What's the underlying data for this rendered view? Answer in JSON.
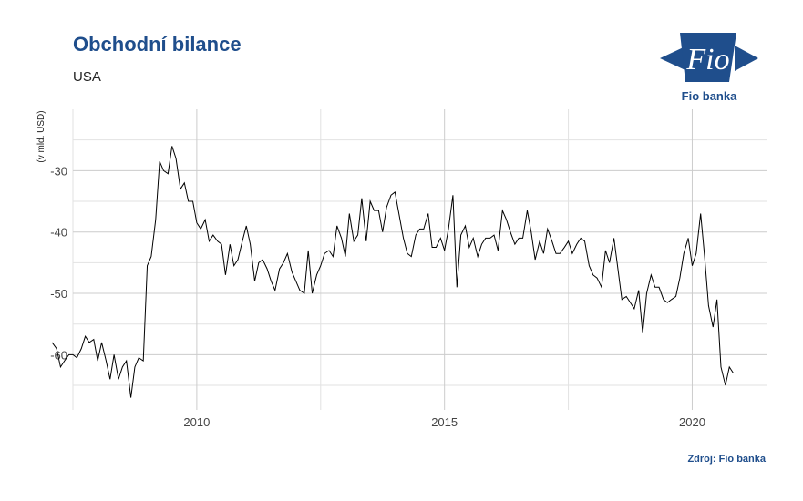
{
  "header": {
    "title": "Obchodní bilance",
    "subtitle": "USA"
  },
  "logo": {
    "icon": "fio-banka-logo",
    "mark_text": "Fio",
    "name": "Fio banka",
    "color": "#1f4e8c"
  },
  "source": "Zdroj: Fio banka",
  "chart_data": {
    "type": "line",
    "title": "Obchodní bilance",
    "subtitle": "USA",
    "xlabel": "",
    "ylabel": "(v mld. USD)",
    "x_ticks": [
      "2010",
      "2015",
      "2020"
    ],
    "y_ticks": [
      "-30",
      "-40",
      "-50",
      "-60"
    ],
    "xlim": [
      2007.5,
      2021.5
    ],
    "ylim": [
      -69,
      -20
    ],
    "grid": true,
    "line_color": "#000000",
    "series": [
      {
        "points": [
          [
            2007.08,
            -58.0
          ],
          [
            2007.17,
            -59.0
          ],
          [
            2007.25,
            -62.0
          ],
          [
            2007.33,
            -61.0
          ],
          [
            2007.42,
            -60.0
          ],
          [
            2007.5,
            -60.0
          ],
          [
            2007.58,
            -60.5
          ],
          [
            2007.67,
            -59.0
          ],
          [
            2007.75,
            -57.0
          ],
          [
            2007.83,
            -58.0
          ],
          [
            2007.92,
            -57.5
          ],
          [
            2008.0,
            -61.0
          ],
          [
            2008.08,
            -58.0
          ],
          [
            2008.17,
            -61.0
          ],
          [
            2008.25,
            -64.0
          ],
          [
            2008.33,
            -60.0
          ],
          [
            2008.42,
            -64.0
          ],
          [
            2008.5,
            -62.0
          ],
          [
            2008.58,
            -61.0
          ],
          [
            2008.67,
            -67.0
          ],
          [
            2008.75,
            -62.0
          ],
          [
            2008.83,
            -60.5
          ],
          [
            2008.92,
            -61.0
          ],
          [
            2009.0,
            -45.5
          ],
          [
            2009.08,
            -44.0
          ],
          [
            2009.17,
            -38.0
          ],
          [
            2009.25,
            -28.5
          ],
          [
            2009.33,
            -30.0
          ],
          [
            2009.42,
            -30.5
          ],
          [
            2009.5,
            -26.0
          ],
          [
            2009.58,
            -28.0
          ],
          [
            2009.67,
            -33.0
          ],
          [
            2009.75,
            -32.0
          ],
          [
            2009.83,
            -35.0
          ],
          [
            2009.92,
            -35.0
          ],
          [
            2010.0,
            -38.5
          ],
          [
            2010.08,
            -39.5
          ],
          [
            2010.17,
            -38.0
          ],
          [
            2010.25,
            -41.5
          ],
          [
            2010.33,
            -40.5
          ],
          [
            2010.42,
            -41.5
          ],
          [
            2010.5,
            -42.0
          ],
          [
            2010.58,
            -47.0
          ],
          [
            2010.67,
            -42.0
          ],
          [
            2010.75,
            -45.5
          ],
          [
            2010.83,
            -44.5
          ],
          [
            2010.92,
            -41.5
          ],
          [
            2011.0,
            -39.0
          ],
          [
            2011.08,
            -42.0
          ],
          [
            2011.17,
            -48.0
          ],
          [
            2011.25,
            -45.0
          ],
          [
            2011.33,
            -44.5
          ],
          [
            2011.42,
            -46.0
          ],
          [
            2011.5,
            -48.0
          ],
          [
            2011.58,
            -49.5
          ],
          [
            2011.67,
            -46.0
          ],
          [
            2011.75,
            -45.0
          ],
          [
            2011.83,
            -43.5
          ],
          [
            2011.92,
            -46.5
          ],
          [
            2012.0,
            -48.0
          ],
          [
            2012.08,
            -49.5
          ],
          [
            2012.17,
            -50.0
          ],
          [
            2012.25,
            -43.0
          ],
          [
            2012.33,
            -50.0
          ],
          [
            2012.42,
            -47.0
          ],
          [
            2012.5,
            -45.5
          ],
          [
            2012.58,
            -43.5
          ],
          [
            2012.67,
            -43.0
          ],
          [
            2012.75,
            -44.0
          ],
          [
            2012.83,
            -39.0
          ],
          [
            2012.92,
            -41.0
          ],
          [
            2013.0,
            -44.0
          ],
          [
            2013.08,
            -37.0
          ],
          [
            2013.17,
            -41.5
          ],
          [
            2013.25,
            -40.5
          ],
          [
            2013.33,
            -34.5
          ],
          [
            2013.42,
            -41.5
          ],
          [
            2013.5,
            -35.0
          ],
          [
            2013.58,
            -36.5
          ],
          [
            2013.67,
            -36.5
          ],
          [
            2013.75,
            -40.0
          ],
          [
            2013.83,
            -36.0
          ],
          [
            2013.92,
            -34.0
          ],
          [
            2014.0,
            -33.5
          ],
          [
            2014.08,
            -37.0
          ],
          [
            2014.17,
            -41.0
          ],
          [
            2014.25,
            -43.5
          ],
          [
            2014.33,
            -44.0
          ],
          [
            2014.42,
            -40.5
          ],
          [
            2014.5,
            -39.5
          ],
          [
            2014.58,
            -39.5
          ],
          [
            2014.67,
            -37.0
          ],
          [
            2014.75,
            -42.5
          ],
          [
            2014.83,
            -42.5
          ],
          [
            2014.92,
            -41.0
          ],
          [
            2015.0,
            -43.0
          ],
          [
            2015.08,
            -39.5
          ],
          [
            2015.17,
            -34.0
          ],
          [
            2015.25,
            -49.0
          ],
          [
            2015.33,
            -40.5
          ],
          [
            2015.42,
            -39.0
          ],
          [
            2015.5,
            -42.5
          ],
          [
            2015.58,
            -41.0
          ],
          [
            2015.67,
            -44.0
          ],
          [
            2015.75,
            -42.0
          ],
          [
            2015.83,
            -41.0
          ],
          [
            2015.92,
            -41.0
          ],
          [
            2016.0,
            -40.5
          ],
          [
            2016.08,
            -43.0
          ],
          [
            2016.17,
            -36.5
          ],
          [
            2016.25,
            -38.0
          ],
          [
            2016.33,
            -40.0
          ],
          [
            2016.42,
            -42.0
          ],
          [
            2016.5,
            -41.0
          ],
          [
            2016.58,
            -41.0
          ],
          [
            2016.67,
            -36.5
          ],
          [
            2016.75,
            -40.0
          ],
          [
            2016.83,
            -44.5
          ],
          [
            2016.92,
            -41.5
          ],
          [
            2017.0,
            -43.5
          ],
          [
            2017.08,
            -39.5
          ],
          [
            2017.17,
            -41.5
          ],
          [
            2017.25,
            -43.5
          ],
          [
            2017.33,
            -43.5
          ],
          [
            2017.42,
            -42.5
          ],
          [
            2017.5,
            -41.5
          ],
          [
            2017.58,
            -43.5
          ],
          [
            2017.67,
            -42.0
          ],
          [
            2017.75,
            -41.0
          ],
          [
            2017.83,
            -41.5
          ],
          [
            2017.92,
            -45.5
          ],
          [
            2018.0,
            -47.0
          ],
          [
            2018.08,
            -47.5
          ],
          [
            2018.17,
            -49.0
          ],
          [
            2018.25,
            -43.0
          ],
          [
            2018.33,
            -45.0
          ],
          [
            2018.42,
            -41.0
          ],
          [
            2018.5,
            -46.0
          ],
          [
            2018.58,
            -51.0
          ],
          [
            2018.67,
            -50.5
          ],
          [
            2018.75,
            -51.5
          ],
          [
            2018.83,
            -52.5
          ],
          [
            2018.92,
            -49.5
          ],
          [
            2019.0,
            -56.5
          ],
          [
            2019.08,
            -50.0
          ],
          [
            2019.17,
            -47.0
          ],
          [
            2019.25,
            -49.0
          ],
          [
            2019.33,
            -49.0
          ],
          [
            2019.42,
            -51.0
          ],
          [
            2019.5,
            -51.5
          ],
          [
            2019.58,
            -51.0
          ],
          [
            2019.67,
            -50.5
          ],
          [
            2019.75,
            -47.5
          ],
          [
            2019.83,
            -43.5
          ],
          [
            2019.92,
            -41.0
          ],
          [
            2020.0,
            -45.5
          ],
          [
            2020.08,
            -43.5
          ],
          [
            2020.17,
            -37.0
          ],
          [
            2020.25,
            -44.0
          ],
          [
            2020.33,
            -52.0
          ],
          [
            2020.42,
            -55.5
          ],
          [
            2020.5,
            -51.0
          ],
          [
            2020.58,
            -62.0
          ],
          [
            2020.67,
            -65.0
          ],
          [
            2020.75,
            -62.0
          ],
          [
            2020.83,
            -63.0
          ]
        ]
      }
    ]
  }
}
